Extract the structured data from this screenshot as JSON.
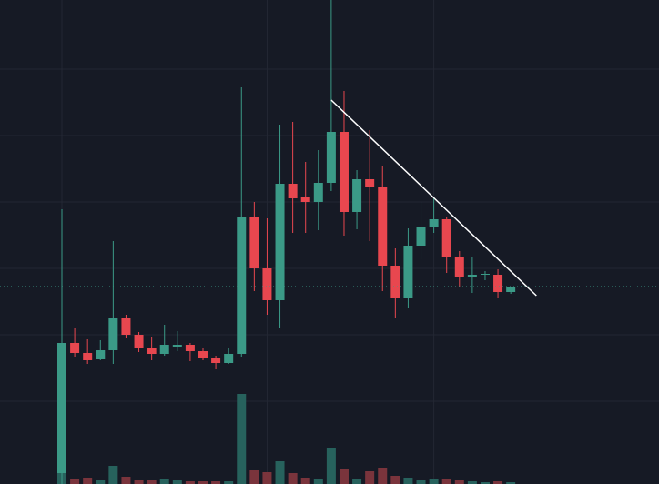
{
  "chart_data": {
    "type": "candlestick",
    "open": [
      12,
      155,
      144,
      137,
      147,
      182,
      164,
      149,
      143,
      151,
      153,
      146,
      139,
      133,
      143,
      293,
      237,
      202,
      330,
      316,
      310,
      331,
      387,
      299,
      335,
      327,
      240,
      204,
      262,
      282,
      291,
      249,
      228,
      230,
      230,
      211
    ],
    "close": [
      155,
      144,
      136,
      147,
      182,
      164,
      149,
      143,
      153,
      153,
      146,
      138,
      133,
      143,
      293,
      237,
      202,
      330,
      314,
      310,
      331,
      387,
      299,
      335,
      327,
      240,
      204,
      262,
      282,
      291,
      249,
      227,
      230,
      231,
      211,
      216
    ],
    "high": [
      302,
      172,
      159,
      158,
      267,
      186,
      167,
      162,
      175,
      168,
      155,
      149,
      141,
      149,
      436,
      310,
      292,
      395,
      398,
      354,
      367,
      532,
      432,
      345,
      389,
      349,
      259,
      281,
      310,
      316,
      294,
      256,
      249,
      234,
      236,
      216
    ],
    "low": [
      0,
      140,
      132,
      136,
      132,
      160,
      145,
      136,
      141,
      146,
      135,
      136,
      126,
      132,
      140,
      212,
      186,
      171,
      276,
      276,
      279,
      322,
      273,
      280,
      267,
      212,
      182,
      193,
      247,
      276,
      232,
      216,
      210,
      224,
      204,
      209
    ],
    "volume": [
      97,
      6,
      7,
      4,
      20,
      8,
      4,
      4,
      5,
      4,
      3,
      3,
      3,
      3,
      99,
      15,
      13,
      25,
      12,
      7,
      5,
      40,
      16,
      5,
      14,
      18,
      9,
      7,
      4,
      5,
      5,
      4,
      3,
      2,
      3,
      2
    ],
    "ylim": [
      0,
      532
    ],
    "grid_y": [
      456,
      383,
      310,
      237,
      164,
      91
    ],
    "grid_x": [
      0,
      16,
      29
    ],
    "price_line": 217,
    "trendline": {
      "x": [
        21,
        37
      ],
      "y": [
        422,
        207
      ]
    },
    "up_color": "#3b9a87",
    "down_color": "#e8474f",
    "up_volume_color": "#27625d",
    "down_volume_color": "#7a343c",
    "grid": true
  }
}
